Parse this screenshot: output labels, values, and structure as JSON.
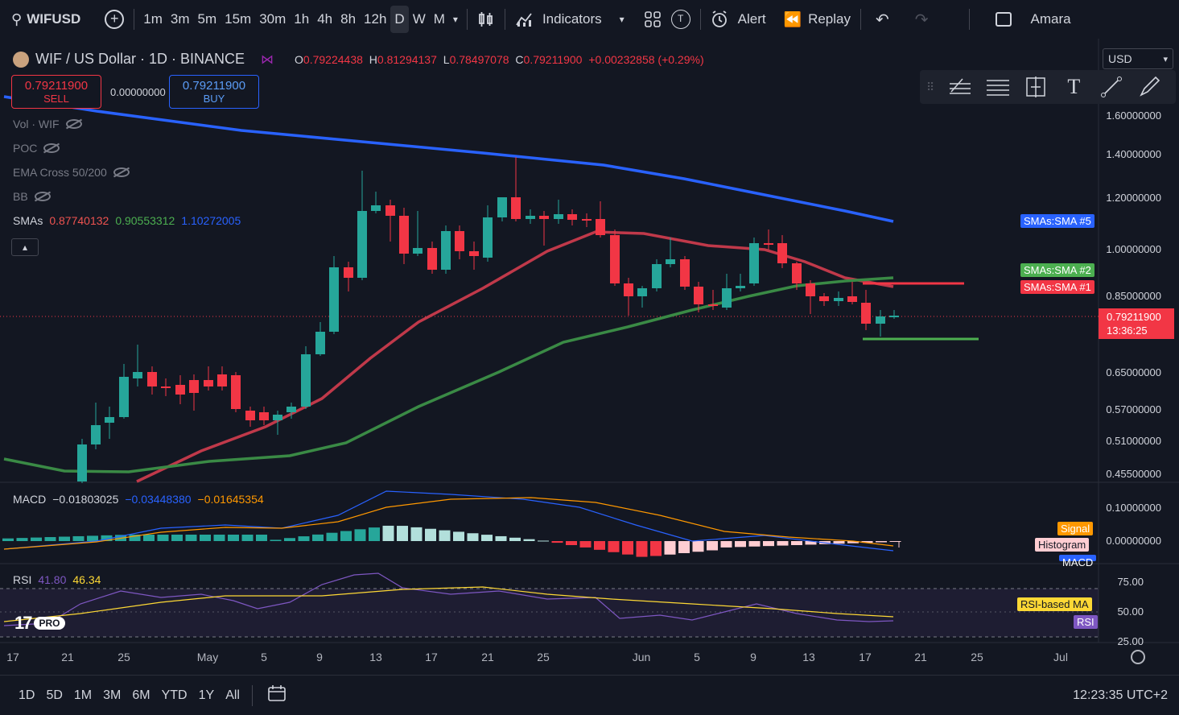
{
  "toolbar": {
    "symbol": "WIFUSD",
    "timeframes": [
      "1m",
      "3m",
      "5m",
      "15m",
      "30m",
      "1h",
      "4h",
      "8h",
      "12h",
      "D",
      "W",
      "M"
    ],
    "active_timeframe": "D",
    "indicators_label": "Indicators",
    "templates_badge": "T",
    "alert_label": "Alert",
    "replay_label": "Replay",
    "user_label": "Amara"
  },
  "header": {
    "title": "WIF / US Dollar · 1D · BINANCE",
    "o_label": "O",
    "o_value": "0.79224438",
    "h_label": "H",
    "h_value": "0.81294137",
    "l_label": "L",
    "l_value": "0.78497078",
    "c_label": "C",
    "c_value": "0.79211900",
    "change": "+0.00232858 (+0.29%)",
    "currency": "USD"
  },
  "trade": {
    "sell_price": "0.79211900",
    "sell_label": "SELL",
    "spread": "0.00000000",
    "buy_price": "0.79211900",
    "buy_label": "BUY"
  },
  "legend": {
    "vol": "Vol · WIF",
    "poc": "POC",
    "ema": "EMA Cross 50/200",
    "bb": "BB",
    "smas_label": "SMAs",
    "sma1": "0.87740132",
    "sma2": "0.90553312",
    "sma3": "1.10272005",
    "macd_label": "MACD",
    "macd1": "−0.01803025",
    "macd2": "−0.03448380",
    "macd3": "−0.01645354",
    "rsi_label": "RSI",
    "rsi1": "41.80",
    "rsi2": "46.34"
  },
  "price_axis": [
    "1.60000000",
    "1.40000000",
    "1.20000000",
    "1.00000000",
    "0.85000000",
    "0.65000000",
    "0.57000000",
    "0.51000000",
    "0.45500000"
  ],
  "current_price": "0.79211900",
  "countdown": "13:36:25",
  "tags": {
    "sma5": "SMAs:SMA #5",
    "sma2": "SMAs:SMA #2",
    "sma1": "SMAs:SMA #1",
    "signal": "Signal",
    "histogram": "Histogram",
    "macd": "MACD",
    "rsi_ma": "RSI-based MA",
    "rsi": "RSI"
  },
  "macd_axis": [
    "0.10000000",
    "0.00000000"
  ],
  "rsi_axis": [
    "75.00",
    "50.00",
    "25.00"
  ],
  "date_axis": [
    "17",
    "21",
    "25",
    "May",
    "5",
    "9",
    "13",
    "17",
    "21",
    "25",
    "Jun",
    "5",
    "9",
    "13",
    "17",
    "21",
    "25",
    "Jul"
  ],
  "ranges": [
    "1D",
    "5D",
    "1M",
    "3M",
    "6M",
    "YTD",
    "1Y",
    "All"
  ],
  "clock": "12:23:35 UTC+2",
  "logo_text": "PRO",
  "colors": {
    "up": "#26a69a",
    "down": "#f23645",
    "sma1": "#ef5350",
    "sma2": "#4caf50",
    "sma5": "#2962ff",
    "macd": "#2962ff",
    "signal": "#ff9800",
    "rsi": "#7e57c2",
    "rsi_ma": "#fdd835"
  },
  "icons": [
    "search-icon",
    "plus-icon",
    "chevron-down-icon",
    "candles-icon",
    "indicators-icon",
    "layouts-icon",
    "alert-icon",
    "replay-icon",
    "undo-icon",
    "redo-icon",
    "fullscreen-icon",
    "settings-icon",
    "calendar-icon",
    "logo-icon"
  ]
}
